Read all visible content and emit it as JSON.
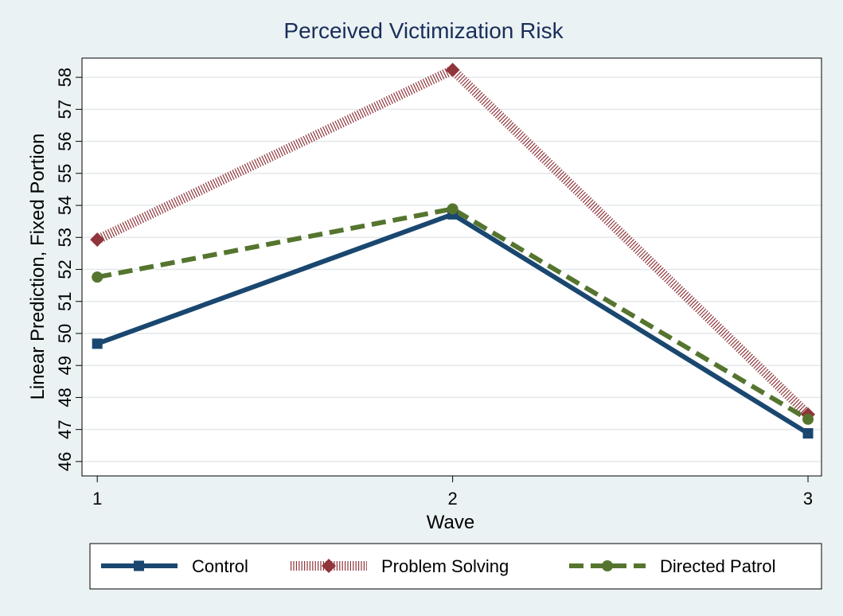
{
  "chart_data": {
    "type": "line",
    "title": "Perceived Victimization Risk",
    "x_label": "Wave",
    "y_label": "Linear Prediction, Fixed Portion",
    "x": [
      1,
      2,
      3
    ],
    "xlim": [
      0.957,
      3.038
    ],
    "xticks": [
      1,
      2,
      3
    ],
    "ylim": [
      45.55,
      58.6
    ],
    "yticks": [
      46,
      47,
      48,
      49,
      50,
      51,
      52,
      53,
      54,
      55,
      56,
      57,
      58
    ],
    "grid": true,
    "legend": "bottom",
    "series": [
      {
        "name": "Control",
        "color": "#1a476f",
        "marker": "square",
        "line_style": "solid",
        "values": [
          49.68,
          53.72,
          46.88
        ]
      },
      {
        "name": "Problem Solving",
        "color": "#90353b",
        "marker": "diamond",
        "line_style": "hatched",
        "values": [
          52.93,
          58.23,
          47.47
        ]
      },
      {
        "name": "Directed Patrol",
        "color": "#55752f",
        "marker": "circle",
        "line_style": "dashed",
        "values": [
          51.76,
          53.89,
          47.32
        ]
      }
    ]
  }
}
